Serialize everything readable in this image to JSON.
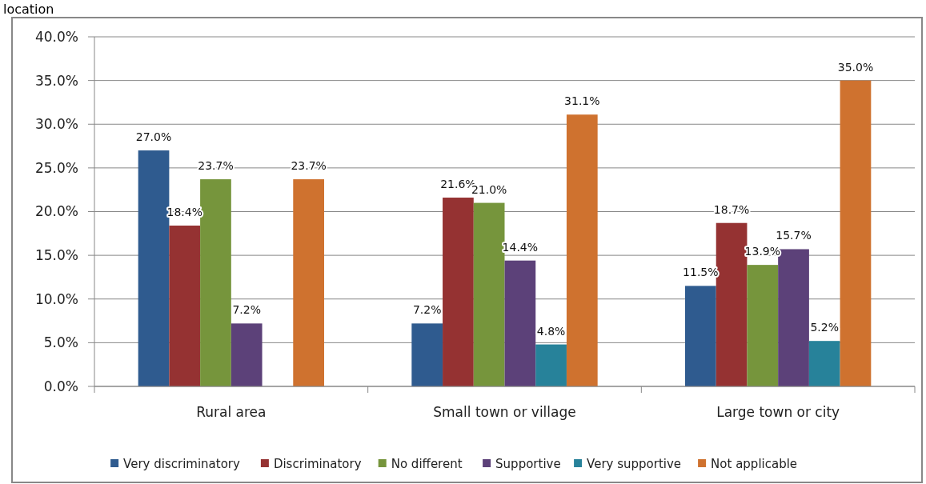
{
  "chart_data": {
    "type": "bar",
    "title": "location",
    "categories": [
      "Rural area",
      "Small town or village",
      "Large town or city"
    ],
    "series": [
      {
        "name": "Very discriminatory",
        "color": "#2f5b8f",
        "values": [
          27.0,
          7.2,
          11.5
        ],
        "value_labels": [
          "27.0%",
          "7.2%",
          "11.5%"
        ]
      },
      {
        "name": "Discriminatory",
        "color": "#953232",
        "values": [
          18.4,
          21.6,
          18.7
        ],
        "value_labels": [
          "18.4%",
          "21.6%",
          "18.7%"
        ]
      },
      {
        "name": "No different",
        "color": "#76953c",
        "values": [
          23.7,
          21.0,
          13.9
        ],
        "value_labels": [
          "23.7%",
          "21.0%",
          "13.9%"
        ]
      },
      {
        "name": "Supportive",
        "color": "#5c4179",
        "values": [
          7.2,
          14.4,
          15.7
        ],
        "value_labels": [
          "7.2%",
          "14.4%",
          "15.7%"
        ]
      },
      {
        "name": "Very supportive",
        "color": "#27829a",
        "values": [
          null,
          4.8,
          5.2
        ],
        "value_labels": [
          null,
          "4.8%",
          "5.2%"
        ]
      },
      {
        "name": "Not applicable",
        "color": "#cf722f",
        "values": [
          23.7,
          31.1,
          35.0
        ],
        "value_labels": [
          "23.7%",
          "31.1%",
          "35.0%"
        ]
      }
    ],
    "ylim": [
      0,
      40
    ],
    "yticks": [
      {
        "value": 0,
        "label": "0.0%"
      },
      {
        "value": 5,
        "label": "5.0%"
      },
      {
        "value": 10,
        "label": "10.0%"
      },
      {
        "value": 15,
        "label": "15.0%"
      },
      {
        "value": 20,
        "label": "20.0%"
      },
      {
        "value": 25,
        "label": "25.0%"
      },
      {
        "value": 30,
        "label": "30.0%"
      },
      {
        "value": 35,
        "label": "35.0%"
      },
      {
        "value": 40,
        "label": "40.0%"
      }
    ],
    "grid": "y",
    "legend": "bottom"
  }
}
